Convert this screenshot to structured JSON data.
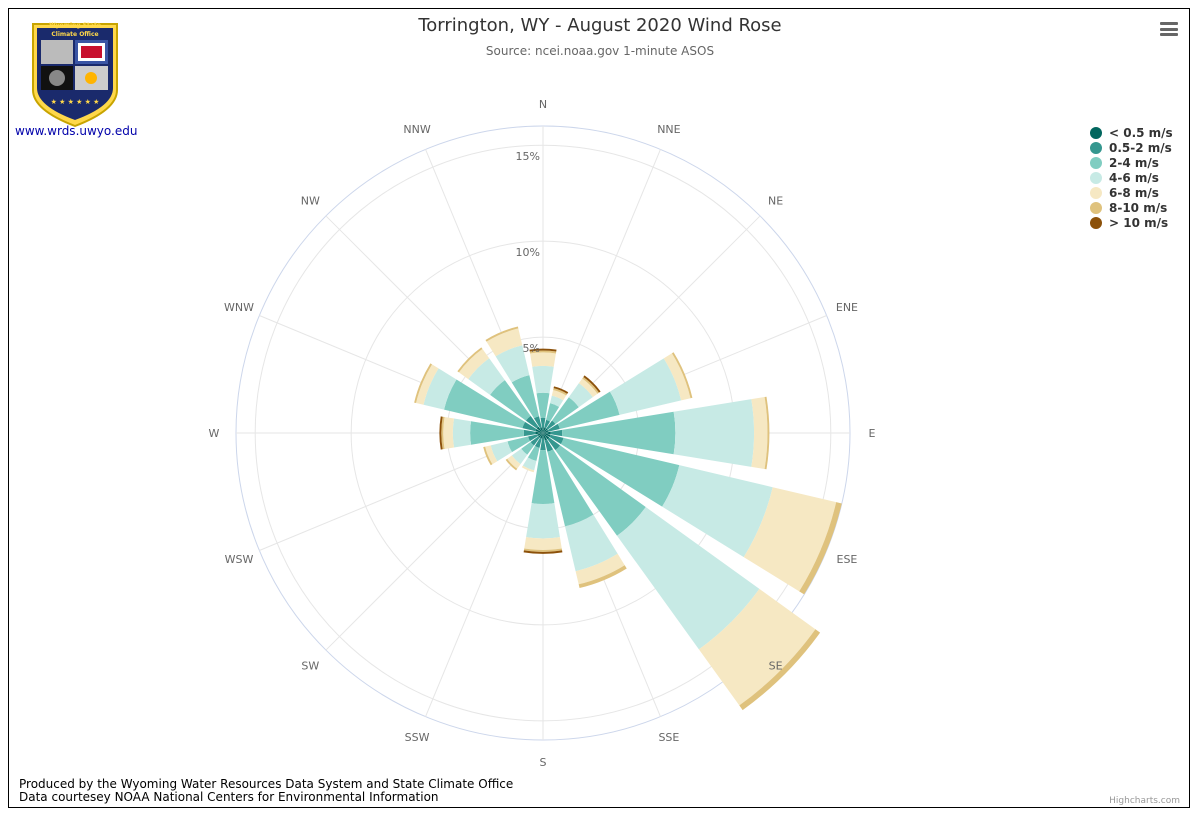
{
  "header": {
    "title": "Torrington, WY - August 2020 Wind Rose",
    "subtitle": "Source: ncei.noaa.gov 1-minute ASOS"
  },
  "logo": {
    "text_line1": "Wyoming State",
    "text_line2": "Climate Office",
    "url": "www.wrds.uwyo.edu"
  },
  "footer": {
    "line1": "Produced by the Wyoming Water Resources Data System and State Climate Office",
    "line2": "Data courtesey NOAA National Centers for Environmental Information",
    "highcharts": "Highcharts.com"
  },
  "menu_icon": "hamburger-menu-icon",
  "chart_data": {
    "type": "wind-rose",
    "title": "Torrington, WY - August 2020 Wind Rose",
    "subtitle": "Source: ncei.noaa.gov 1-minute ASOS",
    "directions": [
      "N",
      "NNE",
      "NE",
      "ENE",
      "E",
      "ESE",
      "SE",
      "SSE",
      "S",
      "SSW",
      "SW",
      "WSW",
      "W",
      "WNW",
      "NW",
      "NNW"
    ],
    "rings": [
      5,
      10,
      15
    ],
    "ring_labels": [
      "5%",
      "10%",
      "15%"
    ],
    "ymax": 16,
    "stacked": true,
    "series": [
      {
        "name": "< 0.5 m/s",
        "color": "#01665e",
        "values": [
          0.3,
          0.3,
          0.3,
          0.3,
          0.4,
          0.4,
          0.4,
          0.4,
          0.3,
          0.3,
          0.3,
          0.3,
          0.4,
          0.4,
          0.4,
          0.3
        ]
      },
      {
        "name": "0.5-2 m/s",
        "color": "#35978f",
        "values": [
          0.5,
          0.4,
          0.5,
          0.6,
          0.6,
          0.7,
          0.7,
          0.6,
          0.6,
          0.5,
          0.5,
          0.5,
          0.6,
          0.7,
          0.7,
          0.6
        ]
      },
      {
        "name": "2-4 m/s",
        "color": "#80cdc1",
        "values": [
          1.3,
          0.9,
          1.5,
          3.2,
          5.9,
          6.2,
          5.5,
          4.0,
          2.8,
          0.7,
          0.6,
          1.1,
          2.8,
          4.2,
          2.3,
          2.2
        ]
      },
      {
        "name": "4-6 m/s",
        "color": "#c7eae5",
        "values": [
          1.4,
          0.4,
          0.9,
          3.3,
          4.1,
          5.0,
          7.3,
          2.4,
          1.8,
          0.5,
          0.6,
          0.9,
          0.9,
          1.1,
          1.4,
          1.6
        ]
      },
      {
        "name": "6-8 m/s",
        "color": "#f6e8c3",
        "values": [
          0.7,
          0.3,
          0.3,
          0.5,
          0.7,
          3.4,
          3.6,
          0.7,
          0.6,
          0.1,
          0.3,
          0.3,
          0.5,
          0.4,
          0.6,
          0.9
        ]
      },
      {
        "name": "8-10 m/s",
        "color": "#dfc27d",
        "values": [
          0.1,
          0.1,
          0.1,
          0.1,
          0.1,
          0.3,
          0.3,
          0.2,
          0.1,
          0.0,
          0.1,
          0.1,
          0.1,
          0.1,
          0.1,
          0.1
        ]
      },
      {
        "name": "> 10 m/s",
        "color": "#8c510a",
        "values": [
          0.1,
          0.1,
          0.1,
          0.0,
          0.0,
          0.0,
          0.0,
          0.0,
          0.1,
          0.0,
          0.0,
          0.0,
          0.1,
          0.0,
          0.0,
          0.0
        ]
      }
    ],
    "legend_position": "top-right"
  }
}
